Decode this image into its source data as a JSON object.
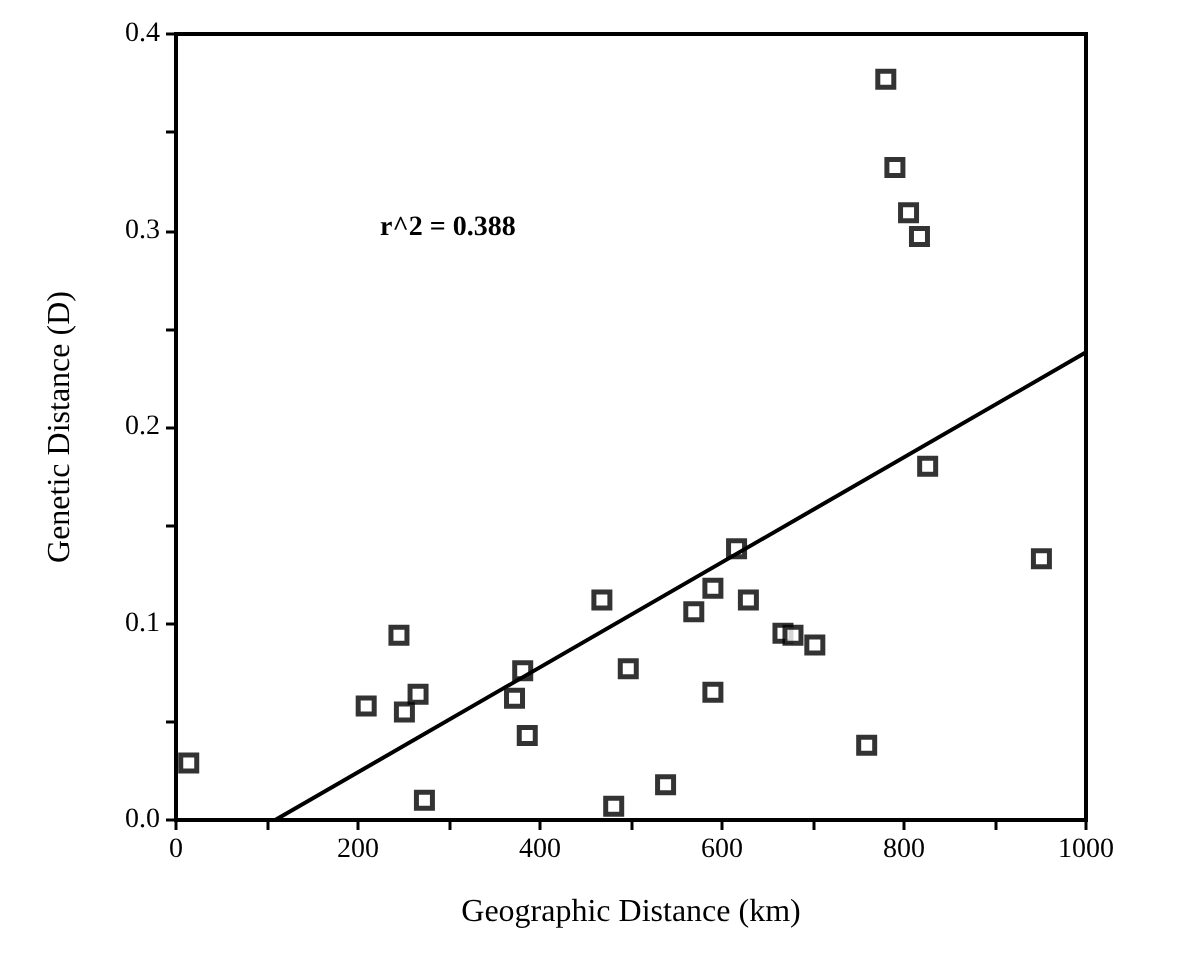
{
  "chart_data": {
    "type": "scatter",
    "xlabel": "Geographic Distance (km)",
    "ylabel": "Genetic Distance (D)",
    "annotations": [
      "r^2 = 0.388"
    ],
    "xlim": [
      0,
      1000
    ],
    "xticks": [
      0,
      {
        "value": 100,
        "label": null
      },
      200,
      {
        "value": 300,
        "label": null
      },
      400,
      {
        "value": 500,
        "label": null
      },
      600,
      {
        "value": 700,
        "label": null
      },
      800,
      {
        "value": 900,
        "label": null
      },
      1000
    ],
    "ylim": [
      0,
      0.4
    ],
    "yticks": [
      {
        "value": 0,
        "label": "0.0"
      },
      {
        "value": 0.05,
        "label": null
      },
      0.1,
      {
        "value": 0.15,
        "label": null
      },
      0.2,
      {
        "value": 0.25,
        "label": null
      },
      0.3,
      {
        "value": 0.35,
        "label": null
      },
      0.4
    ],
    "grid": false,
    "marker": "square",
    "series": [
      {
        "color": "#000000",
        "x": [
          14,
          209,
          245,
          251,
          266,
          273,
          372,
          381,
          386,
          468,
          481,
          497,
          538,
          569,
          590,
          590,
          616,
          629,
          667,
          678,
          702,
          759,
          826,
          951,
          780,
          790,
          805,
          817
        ],
        "values": [
          0.029,
          0.058,
          0.094,
          0.055,
          0.064,
          0.01,
          0.062,
          0.076,
          0.043,
          0.112,
          0.007,
          0.077,
          0.018,
          0.106,
          0.118,
          0.065,
          0.138,
          0.112,
          0.095,
          0.094,
          0.089,
          0.038,
          0.18,
          0.133,
          0.377,
          0.332,
          0.309,
          0.297
        ]
      },
      {
        "type": "line",
        "color": "#000000",
        "marker": "none",
        "x": [
          109,
          1000
        ],
        "values": [
          0,
          0.238
        ]
      }
    ]
  }
}
